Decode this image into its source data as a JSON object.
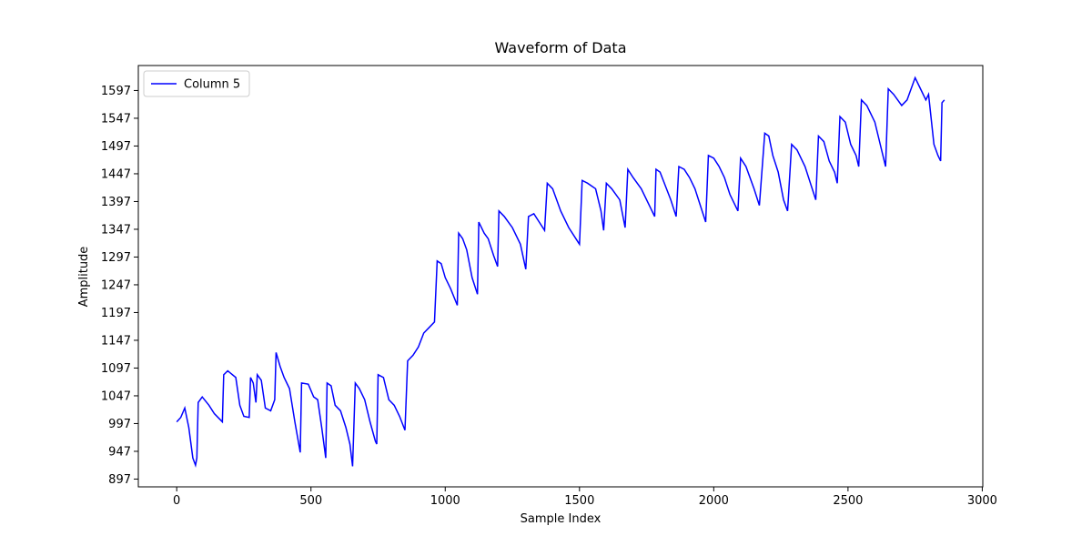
{
  "chart_data": {
    "type": "line",
    "title": "Waveform of Data",
    "x_label": "Sample Index",
    "y_label": "Amplitude",
    "x": [
      0,
      15,
      30,
      45,
      60,
      70,
      75,
      80,
      95,
      120,
      140,
      160,
      170,
      175,
      190,
      220,
      235,
      250,
      270,
      275,
      285,
      295,
      300,
      315,
      330,
      350,
      365,
      370,
      385,
      400,
      420,
      440,
      460,
      465,
      490,
      510,
      525,
      540,
      555,
      560,
      575,
      590,
      610,
      630,
      645,
      655,
      665,
      680,
      700,
      720,
      740,
      745,
      750,
      770,
      790,
      810,
      830,
      850,
      860,
      880,
      900,
      920,
      940,
      960,
      970,
      985,
      1000,
      1020,
      1045,
      1050,
      1065,
      1080,
      1100,
      1120,
      1125,
      1145,
      1160,
      1180,
      1195,
      1200,
      1220,
      1250,
      1280,
      1300,
      1310,
      1330,
      1350,
      1370,
      1380,
      1400,
      1430,
      1460,
      1500,
      1510,
      1530,
      1560,
      1580,
      1590,
      1600,
      1620,
      1650,
      1670,
      1680,
      1700,
      1730,
      1760,
      1780,
      1785,
      1800,
      1820,
      1840,
      1860,
      1870,
      1890,
      1910,
      1930,
      1950,
      1970,
      1980,
      2000,
      2020,
      2040,
      2060,
      2090,
      2100,
      2120,
      2150,
      2170,
      2190,
      2205,
      2220,
      2240,
      2260,
      2275,
      2290,
      2310,
      2340,
      2360,
      2380,
      2390,
      2410,
      2430,
      2450,
      2460,
      2470,
      2490,
      2510,
      2530,
      2540,
      2550,
      2570,
      2600,
      2620,
      2640,
      2650,
      2670,
      2700,
      2720,
      2750,
      2770,
      2790,
      2800,
      2820,
      2835,
      2845,
      2850,
      2859
    ],
    "series": [
      {
        "name": "Column 5",
        "color": "#0000ff",
        "values": [
          1000,
          1008,
          1025,
          990,
          935,
          922,
          935,
          1035,
          1045,
          1030,
          1015,
          1005,
          1000,
          1085,
          1092,
          1080,
          1030,
          1010,
          1008,
          1080,
          1070,
          1035,
          1085,
          1075,
          1025,
          1020,
          1040,
          1125,
          1100,
          1080,
          1060,
          1000,
          945,
          1070,
          1068,
          1045,
          1040,
          990,
          935,
          1070,
          1065,
          1030,
          1020,
          990,
          960,
          920,
          1070,
          1060,
          1040,
          1000,
          965,
          960,
          1085,
          1080,
          1040,
          1030,
          1010,
          985,
          1110,
          1120,
          1135,
          1160,
          1170,
          1180,
          1290,
          1285,
          1260,
          1240,
          1210,
          1340,
          1330,
          1310,
          1260,
          1230,
          1360,
          1340,
          1330,
          1300,
          1280,
          1380,
          1370,
          1350,
          1320,
          1275,
          1370,
          1375,
          1360,
          1345,
          1430,
          1420,
          1380,
          1350,
          1320,
          1435,
          1430,
          1420,
          1380,
          1345,
          1430,
          1420,
          1400,
          1350,
          1455,
          1440,
          1420,
          1390,
          1370,
          1455,
          1450,
          1425,
          1400,
          1370,
          1460,
          1455,
          1440,
          1420,
          1390,
          1360,
          1480,
          1475,
          1460,
          1440,
          1410,
          1380,
          1475,
          1460,
          1420,
          1390,
          1520,
          1515,
          1480,
          1450,
          1400,
          1380,
          1500,
          1490,
          1460,
          1430,
          1400,
          1515,
          1505,
          1470,
          1450,
          1430,
          1550,
          1540,
          1500,
          1480,
          1460,
          1580,
          1570,
          1540,
          1500,
          1460,
          1600,
          1590,
          1570,
          1580,
          1620,
          1600,
          1580,
          1590,
          1500,
          1480,
          1470,
          1575,
          1580
        ]
      }
    ],
    "xlim": [
      -143,
      3002
    ],
    "ylim": [
      883,
      1642
    ],
    "xticks": [
      0,
      500,
      1000,
      1500,
      2000,
      2500,
      3000
    ],
    "yticks": [
      897,
      947,
      997,
      1047,
      1097,
      1147,
      1197,
      1247,
      1297,
      1347,
      1397,
      1447,
      1497,
      1547,
      1597
    ],
    "legend": "upper left"
  }
}
